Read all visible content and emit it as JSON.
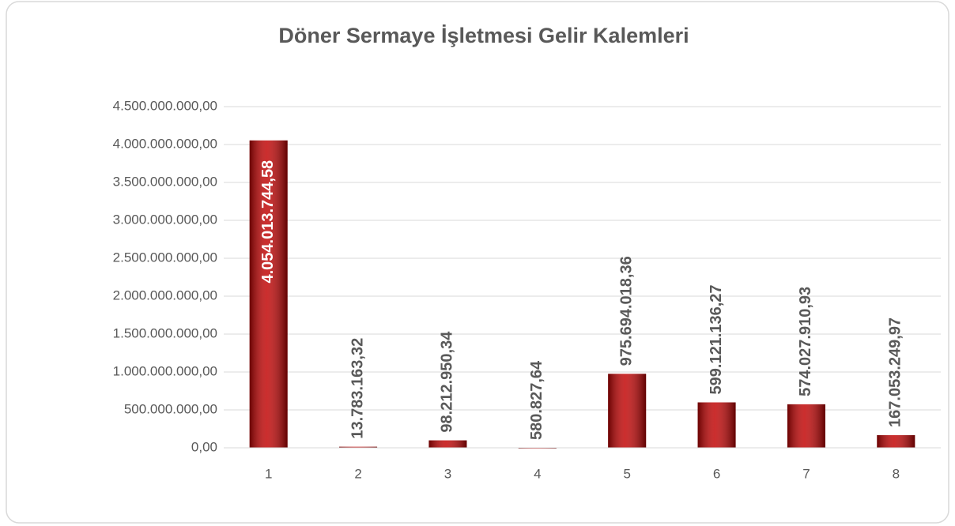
{
  "chart_data": {
    "type": "bar",
    "title": "Döner Sermaye İşletmesi Gelir Kalemleri",
    "categories": [
      "1",
      "2",
      "3",
      "4",
      "5",
      "6",
      "7",
      "8"
    ],
    "values": [
      4054013744.58,
      13783163.32,
      98212950.34,
      580827.64,
      975694018.36,
      599121136.27,
      574027910.93,
      167053249.97
    ],
    "value_labels": [
      "4.054.013.744,58",
      "13.783.163,32",
      "98.212.950,34",
      "580.827,64",
      "975.694.018,36",
      "599.121.136,27",
      "574.027.910,93",
      "167.053.249,97"
    ],
    "color": "#c00000",
    "ylim": [
      0,
      4500000000
    ],
    "yticks": [
      {
        "value": 0,
        "label": "0,00"
      },
      {
        "value": 500000000,
        "label": "500.000.000,00"
      },
      {
        "value": 1000000000,
        "label": "1.000.000.000,00"
      },
      {
        "value": 1500000000,
        "label": "1.500.000.000,00"
      },
      {
        "value": 2000000000,
        "label": "2.000.000.000,00"
      },
      {
        "value": 2500000000,
        "label": "2.500.000.000,00"
      },
      {
        "value": 3000000000,
        "label": "3.000.000.000,00"
      },
      {
        "value": 3500000000,
        "label": "3.500.000.000,00"
      },
      {
        "value": 4000000000,
        "label": "4.000.000.000,00"
      },
      {
        "value": 4500000000,
        "label": "4.500.000.000,00"
      }
    ],
    "grid": true
  }
}
